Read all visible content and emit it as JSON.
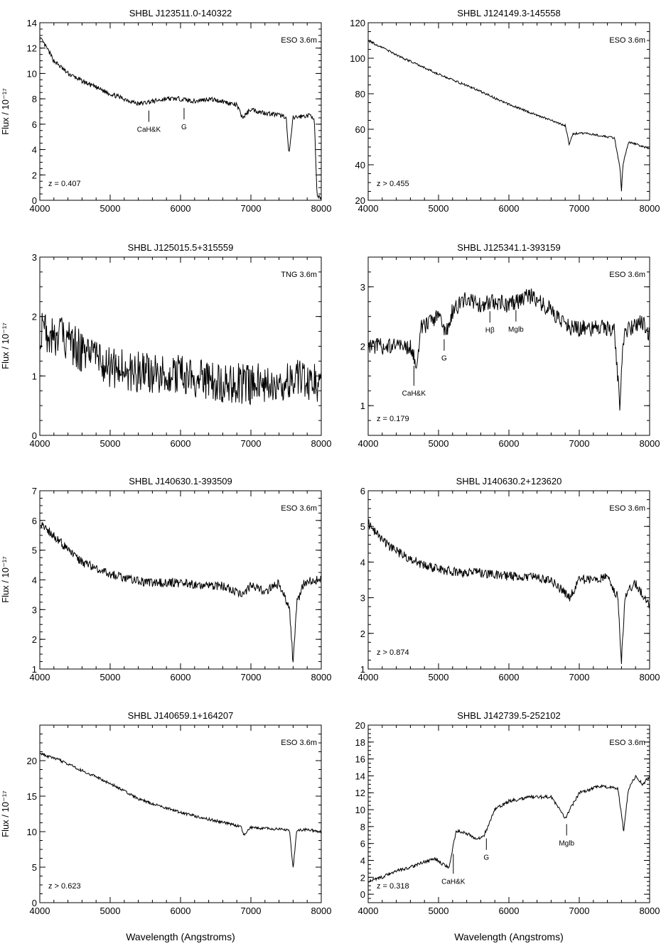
{
  "figure": {
    "ylabel": "Flux / 10⁻¹⁷",
    "xlabel": "Wavelength (Angstroms)"
  },
  "chart_data": [
    {
      "type": "line",
      "title": "SHBL J123511.0-140322",
      "telescope": "ESO 3.6m",
      "redshift": "z = 0.407",
      "xlim": [
        4000,
        8000
      ],
      "ylim": [
        0,
        14
      ],
      "xticks": [
        4000,
        5000,
        6000,
        7000,
        8000
      ],
      "yticks": [
        0,
        2,
        4,
        6,
        8,
        10,
        12,
        14
      ],
      "series": [
        {
          "x": [
            4000,
            4100,
            4200,
            4300,
            4400,
            4600,
            4800,
            5000,
            5200,
            5400,
            5600,
            5800,
            6000,
            6200,
            6400,
            6600,
            6800,
            6880,
            7000,
            7100,
            7300,
            7500,
            7540,
            7600,
            7700,
            7850,
            7900,
            7940
          ],
          "y": [
            12.8,
            12.0,
            11.0,
            10.5,
            10.0,
            9.4,
            8.9,
            8.4,
            8.0,
            7.6,
            7.8,
            8.0,
            8.0,
            7.8,
            8.0,
            7.8,
            7.5,
            6.5,
            7.2,
            7.0,
            6.8,
            6.6,
            3.5,
            6.5,
            6.6,
            6.7,
            6.5,
            0.2
          ]
        }
      ],
      "noise": 0.18,
      "lines": [
        {
          "label": "CaH&K",
          "x": 5550
        },
        {
          "label": "G",
          "x": 6050
        }
      ]
    },
    {
      "type": "line",
      "title": "SHBL J124149.3-145558",
      "telescope": "ESO 3.6m",
      "redshift": "z > 0.455",
      "xlim": [
        4000,
        8000
      ],
      "ylim": [
        20,
        120
      ],
      "xticks": [
        4000,
        5000,
        6000,
        7000,
        8000
      ],
      "yticks": [
        20,
        40,
        60,
        80,
        100,
        120
      ],
      "series": [
        {
          "x": [
            4000,
            4200,
            4500,
            5000,
            5500,
            6000,
            6400,
            6800,
            6860,
            6900,
            7000,
            7200,
            7500,
            7580,
            7600,
            7620,
            7700,
            8000
          ],
          "y": [
            110,
            106,
            100,
            91,
            83,
            74,
            68,
            62,
            51,
            57,
            58,
            57,
            55,
            38,
            25,
            40,
            53,
            49
          ]
        }
      ],
      "noise": 0.6,
      "lines": []
    },
    {
      "type": "line",
      "title": "SHBL J125015.5+315559",
      "telescope": "TNG 3.6m",
      "redshift": "",
      "xlim": [
        4000,
        8000
      ],
      "ylim": [
        0,
        3
      ],
      "xticks": [
        4000,
        5000,
        6000,
        7000,
        8000
      ],
      "yticks": [
        0,
        1,
        2,
        3
      ],
      "series": [
        {
          "x": [
            4000,
            4200,
            4400,
            4600,
            4800,
            5000,
            5200,
            5500,
            6000,
            6500,
            7000,
            7400,
            7700,
            7900,
            8000
          ],
          "y": [
            1.8,
            1.7,
            1.6,
            1.4,
            1.25,
            1.15,
            1.1,
            1.05,
            1.0,
            0.9,
            0.85,
            0.9,
            0.95,
            0.9,
            0.8
          ]
        }
      ],
      "noise": 0.35,
      "lines": []
    },
    {
      "type": "line",
      "title": "SHBL J125341.1-393159",
      "telescope": "ESO 3.6m",
      "redshift": "z = 0.179",
      "xlim": [
        4000,
        8000
      ],
      "ylim": [
        0.5,
        3.5
      ],
      "xticks": [
        4000,
        5000,
        6000,
        7000,
        8000
      ],
      "yticks": [
        1,
        2,
        3
      ],
      "series": [
        {
          "x": [
            4000,
            4300,
            4600,
            4680,
            4750,
            5000,
            5100,
            5200,
            5400,
            5600,
            5800,
            6000,
            6300,
            6600,
            6900,
            7200,
            7500,
            7580,
            7620,
            7700,
            7900,
            8000
          ],
          "y": [
            2.0,
            2.0,
            2.0,
            1.7,
            2.3,
            2.5,
            2.2,
            2.6,
            2.8,
            2.7,
            2.75,
            2.7,
            2.85,
            2.6,
            2.3,
            2.3,
            2.3,
            0.9,
            2.1,
            2.3,
            2.4,
            2.2
          ]
        }
      ],
      "noise": 0.14,
      "lines": [
        {
          "label": "CaH&K",
          "x": 4650,
          "below": true
        },
        {
          "label": "G",
          "x": 5080
        },
        {
          "label": "Hβ",
          "x": 5730
        },
        {
          "label": "Mglb",
          "x": 6100
        }
      ]
    },
    {
      "type": "line",
      "title": "SHBL J140630.1-393509",
      "telescope": "ESO 3.6m",
      "redshift": "",
      "xlim": [
        4000,
        8000
      ],
      "ylim": [
        1,
        7
      ],
      "xticks": [
        4000,
        5000,
        6000,
        7000,
        8000
      ],
      "yticks": [
        1,
        2,
        3,
        4,
        5,
        6,
        7
      ],
      "series": [
        {
          "x": [
            4000,
            4200,
            4400,
            4600,
            4800,
            5000,
            5300,
            5600,
            6000,
            6300,
            6600,
            6880,
            7000,
            7200,
            7400,
            7550,
            7600,
            7650,
            7750,
            7900,
            8000
          ],
          "y": [
            5.9,
            5.5,
            5.0,
            4.6,
            4.4,
            4.2,
            4.0,
            3.9,
            3.9,
            3.8,
            3.8,
            3.5,
            3.8,
            3.6,
            3.9,
            3.0,
            1.2,
            3.2,
            3.9,
            4.0,
            4.0
          ]
        }
      ],
      "noise": 0.15,
      "lines": []
    },
    {
      "type": "line",
      "title": "SHBL J140630.2+123620",
      "telescope": "ESO 3.6m",
      "redshift": "z > 0.874",
      "xlim": [
        4000,
        8000
      ],
      "ylim": [
        1,
        6
      ],
      "xticks": [
        4000,
        5000,
        6000,
        7000,
        8000
      ],
      "yticks": [
        1,
        2,
        3,
        4,
        5,
        6
      ],
      "series": [
        {
          "x": [
            4000,
            4200,
            4400,
            4600,
            4800,
            5000,
            5300,
            5600,
            6000,
            6300,
            6600,
            6860,
            7000,
            7200,
            7400,
            7550,
            7600,
            7650,
            7800,
            8000
          ],
          "y": [
            5.1,
            4.6,
            4.3,
            4.1,
            3.9,
            3.8,
            3.7,
            3.7,
            3.6,
            3.6,
            3.5,
            3.0,
            3.5,
            3.5,
            3.6,
            3.0,
            1.2,
            3.1,
            3.4,
            2.8
          ]
        }
      ],
      "noise": 0.13,
      "lines": []
    },
    {
      "type": "line",
      "title": "SHBL J140659.1+164207",
      "telescope": "ESO 3.6m",
      "redshift": "z > 0.623",
      "xlim": [
        4000,
        8000
      ],
      "ylim": [
        0,
        25
      ],
      "xticks": [
        4000,
        5000,
        6000,
        7000,
        8000
      ],
      "yticks": [
        0,
        5,
        10,
        15,
        20
      ],
      "series": [
        {
          "x": [
            4000,
            4300,
            4600,
            5000,
            5400,
            5800,
            6200,
            6600,
            6860,
            6900,
            7000,
            7300,
            7550,
            7600,
            7650,
            7800,
            8000
          ],
          "y": [
            21,
            20,
            18.6,
            16.8,
            14.6,
            13.3,
            12.2,
            11.3,
            10.7,
            9.5,
            10.6,
            10.4,
            10.2,
            4.8,
            10.2,
            10.3,
            10.0
          ]
        }
      ],
      "noise": 0.2,
      "lines": []
    },
    {
      "type": "line",
      "title": "SHBL J142739.5-252102",
      "telescope": "ESO 3.6m",
      "redshift": "z = 0.318",
      "xlim": [
        4000,
        8000
      ],
      "ylim": [
        -1,
        20
      ],
      "xticks": [
        4000,
        5000,
        6000,
        7000,
        8000
      ],
      "yticks": [
        0,
        2,
        4,
        6,
        8,
        10,
        12,
        14,
        16,
        18,
        20
      ],
      "series": [
        {
          "x": [
            4000,
            4200,
            4400,
            4600,
            4800,
            4950,
            5050,
            5150,
            5250,
            5400,
            5550,
            5650,
            5800,
            6000,
            6300,
            6600,
            6800,
            7000,
            7300,
            7550,
            7630,
            7700,
            7800,
            7900,
            8000
          ],
          "y": [
            1.5,
            2.0,
            2.8,
            3.2,
            3.8,
            4.2,
            3.6,
            3.2,
            7.5,
            7.2,
            6.5,
            7.0,
            10.0,
            11.0,
            11.5,
            11.5,
            9.0,
            12.0,
            12.8,
            12.5,
            7.5,
            12.5,
            14.0,
            13.0,
            14.0
          ]
        }
      ],
      "noise": 0.2,
      "lines": [
        {
          "label": "CaH&K",
          "x": 5210,
          "below": true
        },
        {
          "label": "G",
          "x": 5680
        },
        {
          "label": "Mglb",
          "x": 6820
        }
      ]
    }
  ]
}
